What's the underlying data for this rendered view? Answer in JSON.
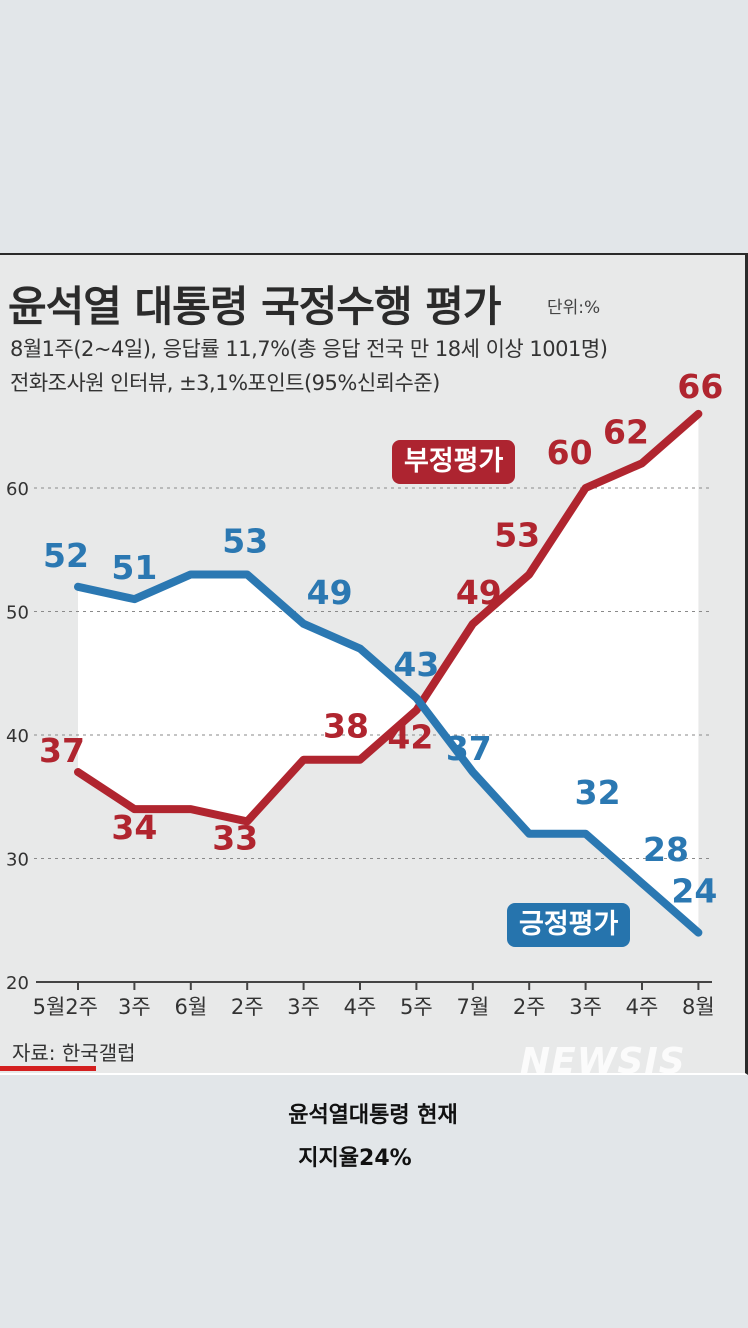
{
  "chart_data": {
    "type": "line",
    "title": "윤석열 대통령 국정수행 평가",
    "unit": "단위:%",
    "subtitle_1": "8월1주(2~4일), 응답률 11,7%(총 응답 전국 만 18세 이상 1001명)",
    "subtitle_2": "전화조사원 인터뷰, ±3,1%포인트(95%신뢰수준)",
    "categories": [
      "5월2주",
      "3주",
      "6월",
      "2주",
      "3주",
      "4주",
      "5주",
      "7월",
      "2주",
      "3주",
      "4주",
      "8월"
    ],
    "series": [
      {
        "name": "긍정평가",
        "color": "#2b78b2",
        "values": [
          52,
          51,
          53,
          53,
          49,
          47,
          43,
          37,
          32,
          32,
          28,
          24
        ]
      },
      {
        "name": "부정평가",
        "color": "#b0252f",
        "values": [
          37,
          34,
          34,
          33,
          38,
          38,
          42,
          49,
          53,
          60,
          62,
          66
        ]
      }
    ],
    "pos_labels": [
      "52",
      "51",
      "",
      "53",
      "49",
      "",
      "43",
      "37",
      "",
      "32",
      "28",
      "24"
    ],
    "neg_labels": [
      "37",
      "34",
      "",
      "33",
      "",
      "38",
      "42",
      "49",
      "53",
      "60",
      "62",
      "66"
    ],
    "ylim": [
      20,
      66
    ],
    "yticks": [
      "20",
      "30",
      "40",
      "50",
      "60"
    ],
    "grid": true,
    "source": "자료: 한국갤럽",
    "watermark": "NEWSIS"
  },
  "caption": {
    "line1": "윤석열대통령 현재",
    "line2": "지지율24%"
  }
}
